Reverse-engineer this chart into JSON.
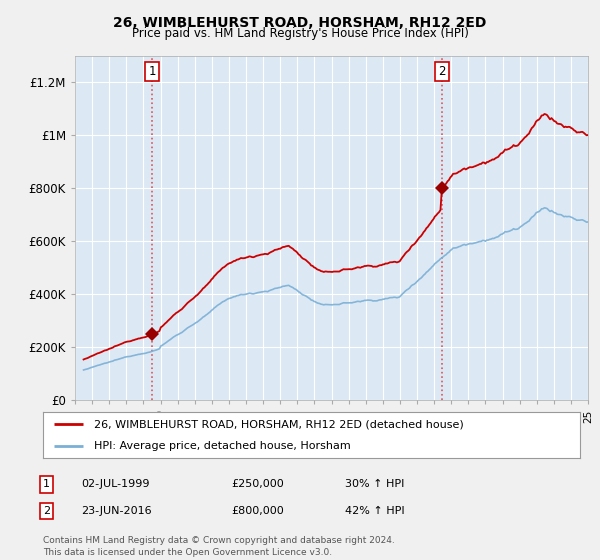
{
  "title": "26, WIMBLEHURST ROAD, HORSHAM, RH12 2ED",
  "subtitle": "Price paid vs. HM Land Registry's House Price Index (HPI)",
  "legend_line1": "26, WIMBLEHURST ROAD, HORSHAM, RH12 2ED (detached house)",
  "legend_line2": "HPI: Average price, detached house, Horsham",
  "annotation1_date": "02-JUL-1999",
  "annotation1_price": "£250,000",
  "annotation1_hpi": "30% ↑ HPI",
  "annotation2_date": "23-JUN-2016",
  "annotation2_price": "£800,000",
  "annotation2_hpi": "42% ↑ HPI",
  "copyright": "Contains HM Land Registry data © Crown copyright and database right 2024.\nThis data is licensed under the Open Government Licence v3.0.",
  "sale1_year": 1999.5,
  "sale1_value": 250000,
  "sale2_year": 2016.47,
  "sale2_value": 800000,
  "hpi_color": "#7bafd4",
  "price_color": "#cc0000",
  "marker_color": "#990000",
  "vline_color": "#dd4444",
  "background_color": "#f0f0f0",
  "plot_bg_color": "#dce9f5",
  "grid_color": "#ffffff",
  "ylim_max": 1300000,
  "ylim_min": 0,
  "xlim_min": 1995.5,
  "xlim_max": 2025.0
}
